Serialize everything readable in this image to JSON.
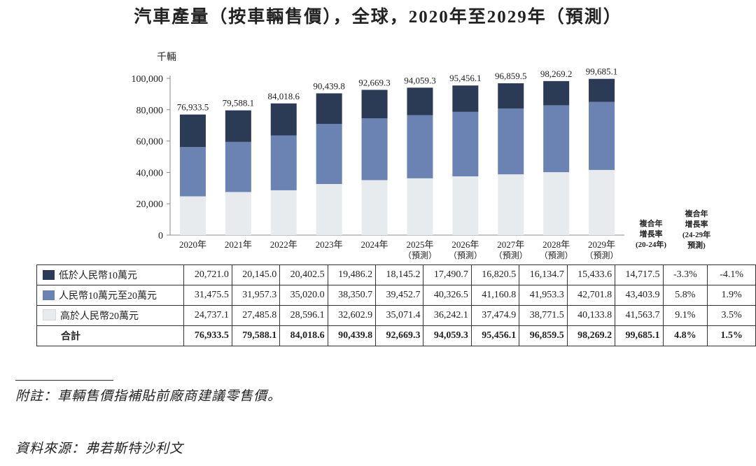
{
  "title": "汽車產量（按車輛售價），全球，2020年至2029年（預測）",
  "unit_label": "千輛",
  "colors": {
    "low": "#2b3a55",
    "mid": "#6a83b3",
    "high": "#e8ebee",
    "axis": "#888888"
  },
  "cagr_header_1": [
    "複合年",
    "增長率",
    "(20-24年)"
  ],
  "cagr_header_2": [
    "複合年",
    "增長率",
    "(24-29年",
    "預測)"
  ],
  "chart_data": {
    "type": "bar",
    "stacked": true,
    "title": "汽車產量（按車輛售價），全球，2020年至2029年（預測）",
    "ylabel": "千輛",
    "ylim": [
      0,
      100000
    ],
    "yticks": [
      "0",
      "20,000",
      "40,000",
      "60,000",
      "80,000",
      "100,000"
    ],
    "ytick_values": [
      0,
      20000,
      40000,
      60000,
      80000,
      100000
    ],
    "categories": [
      "2020年",
      "2021年",
      "2022年",
      "2023年",
      "2024年",
      "2025年",
      "2026年",
      "2027年",
      "2028年",
      "2029年"
    ],
    "category_notes": [
      "",
      "",
      "",
      "",
      "",
      "（預測）",
      "（預測）",
      "（預測）",
      "（預測）",
      "（預測）"
    ],
    "series": [
      {
        "name": "高於人民幣20萬元",
        "key": "high",
        "values": [
          24737.1,
          27485.8,
          28596.1,
          32602.9,
          35071.4,
          36242.1,
          37474.9,
          38771.5,
          40133.8,
          41563.7
        ]
      },
      {
        "name": "人民幣10萬元至20萬元",
        "key": "mid",
        "values": [
          31475.5,
          31957.3,
          35020.0,
          38350.7,
          39452.7,
          40326.5,
          41160.8,
          41953.3,
          42701.8,
          43403.9
        ]
      },
      {
        "name": "低於人民幣10萬元",
        "key": "low",
        "values": [
          20721.0,
          20145.0,
          20402.5,
          19486.2,
          18145.2,
          17490.7,
          16820.5,
          16134.7,
          15433.6,
          14717.5
        ]
      }
    ],
    "totals": [
      76933.5,
      79588.1,
      84018.6,
      90439.8,
      92669.3,
      94059.3,
      95456.1,
      96859.5,
      98269.2,
      99685.1
    ],
    "total_labels": [
      "76,933.5",
      "79,588.1",
      "84,018.6",
      "90,439.8",
      "92,669.3",
      "94,059.3",
      "95,456.1",
      "96,859.5",
      "98,269.2",
      "99,685.1"
    ],
    "grid": false
  },
  "table": {
    "rows": [
      {
        "label": "低於人民幣10萬元",
        "key": "low",
        "values": [
          "20,721.0",
          "20,145.0",
          "20,402.5",
          "19,486.2",
          "18,145.2",
          "17,490.7",
          "16,820.5",
          "16,134.7",
          "15,433.6",
          "14,717.5"
        ],
        "cagr1": "-3.3%",
        "cagr2": "-4.1%"
      },
      {
        "label": "人民幣10萬元至20萬元",
        "key": "mid",
        "values": [
          "31,475.5",
          "31,957.3",
          "35,020.0",
          "38,350.7",
          "39,452.7",
          "40,326.5",
          "41,160.8",
          "41,953.3",
          "42,701.8",
          "43,403.9"
        ],
        "cagr1": "5.8%",
        "cagr2": "1.9%"
      },
      {
        "label": "高於人民幣20萬元",
        "key": "high",
        "values": [
          "24,737.1",
          "27,485.8",
          "28,596.1",
          "32,602.9",
          "35,071.4",
          "36,242.1",
          "37,474.9",
          "38,771.5",
          "40,133.8",
          "41,563.7"
        ],
        "cagr1": "9.1%",
        "cagr2": "3.5%"
      }
    ],
    "total": {
      "label": "合計",
      "values": [
        "76,933.5",
        "79,588.1",
        "84,018.6",
        "90,439.8",
        "92,669.3",
        "94,059.3",
        "95,456.1",
        "96,859.5",
        "98,269.2",
        "99,685.1"
      ],
      "cagr1": "4.8%",
      "cagr2": "1.5%"
    }
  },
  "note": "附註：車輛售價指補貼前廠商建議零售價。",
  "source": "資料來源：弗若斯特沙利文"
}
